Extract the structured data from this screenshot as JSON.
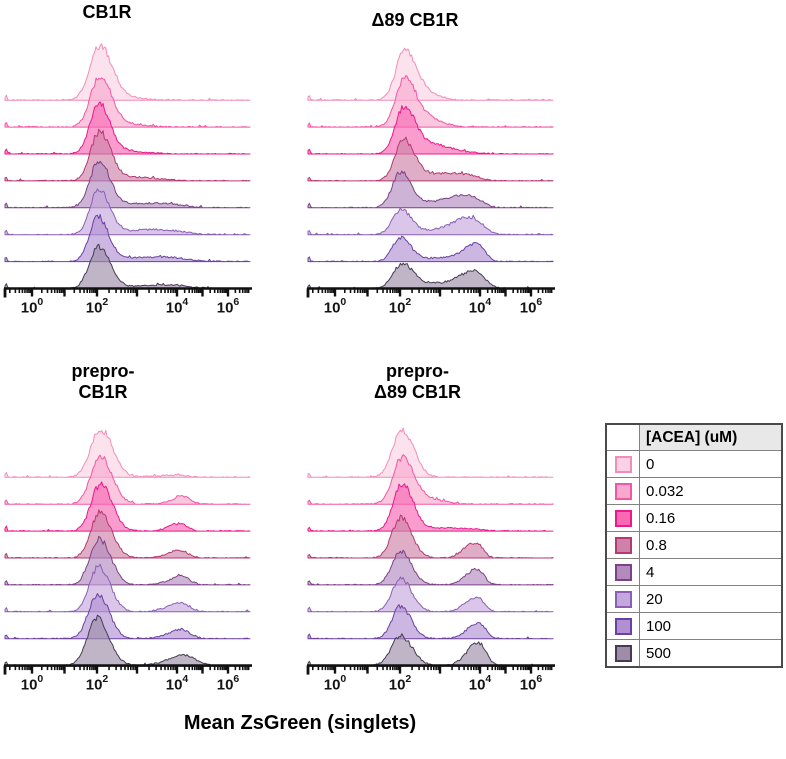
{
  "chart_data": {
    "type": "area",
    "subtype": "ridgeline-flow-cytometry-histograms",
    "x_axis": {
      "label": "Mean ZsGreen (singlets)",
      "scale": "biexponential-log10",
      "tick_base": "10",
      "tick_exponents": [
        0,
        2,
        4,
        6
      ],
      "range_log10": [
        -0.85,
        6.9
      ],
      "grid": false
    },
    "y_axis": {
      "label": "",
      "note": "event density, one offset histogram per ACEA concentration, 0 uM on top to 500 uM on bottom"
    },
    "legend": {
      "title": "[ACEA] (uM)",
      "position": "right"
    },
    "series": [
      {
        "concentration_uM": "0",
        "stroke": "#F48CBB",
        "fill": "#FBD2E3"
      },
      {
        "concentration_uM": "0.032",
        "stroke": "#F455A5",
        "fill": "#F9A9CE"
      },
      {
        "concentration_uM": "0.16",
        "stroke": "#EC188C",
        "fill": "#F868B3"
      },
      {
        "concentration_uM": "0.8",
        "stroke": "#B43A71",
        "fill": "#CE82A7"
      },
      {
        "concentration_uM": "4",
        "stroke": "#7D4186",
        "fill": "#B28ABE"
      },
      {
        "concentration_uM": "20",
        "stroke": "#8C5FB6",
        "fill": "#C5A7DB"
      },
      {
        "concentration_uM": "100",
        "stroke": "#6C40A2",
        "fill": "#B190D2"
      },
      {
        "concentration_uM": "500",
        "stroke": "#473B54",
        "fill": "#9D8DA7"
      }
    ],
    "edge_spike_height": 0.09,
    "panels": [
      {
        "title_lines": [
          "CB1R"
        ],
        "rows": [
          {
            "peaks": [
              {
                "c": 2.08,
                "h": 1.0,
                "w": 0.3
              },
              {
                "c": 2.6,
                "h": 0.06,
                "w": 0.5
              }
            ]
          },
          {
            "peaks": [
              {
                "c": 2.08,
                "h": 0.96,
                "w": 0.28
              },
              {
                "c": 2.7,
                "h": 0.06,
                "w": 0.5
              }
            ]
          },
          {
            "peaks": [
              {
                "c": 2.05,
                "h": 0.94,
                "w": 0.27
              },
              {
                "c": 2.7,
                "h": 0.06,
                "w": 0.5
              }
            ]
          },
          {
            "peaks": [
              {
                "c": 2.07,
                "h": 0.92,
                "w": 0.27
              },
              {
                "c": 2.9,
                "h": 0.07,
                "w": 0.6
              }
            ]
          },
          {
            "peaks": [
              {
                "c": 2.05,
                "h": 0.87,
                "w": 0.27
              },
              {
                "c": 3.3,
                "h": 0.09,
                "w": 0.8
              }
            ]
          },
          {
            "peaks": [
              {
                "c": 2.05,
                "h": 0.86,
                "w": 0.26
              },
              {
                "c": 3.4,
                "h": 0.1,
                "w": 0.8
              }
            ]
          },
          {
            "peaks": [
              {
                "c": 2.03,
                "h": 0.84,
                "w": 0.26
              },
              {
                "c": 3.5,
                "h": 0.09,
                "w": 0.8
              }
            ]
          },
          {
            "peaks": [
              {
                "c": 2.05,
                "h": 0.8,
                "w": 0.28
              },
              {
                "c": 3.7,
                "h": 0.07,
                "w": 0.7
              }
            ]
          }
        ]
      },
      {
        "title_lines": [
          "Δ89 CB1R"
        ],
        "rows": [
          {
            "peaks": [
              {
                "c": 2.12,
                "h": 0.87,
                "w": 0.26
              },
              {
                "c": 2.55,
                "h": 0.18,
                "w": 0.35
              }
            ]
          },
          {
            "peaks": [
              {
                "c": 2.12,
                "h": 0.85,
                "w": 0.26
              },
              {
                "c": 2.6,
                "h": 0.2,
                "w": 0.4
              }
            ]
          },
          {
            "peaks": [
              {
                "c": 2.1,
                "h": 0.81,
                "w": 0.26
              },
              {
                "c": 2.65,
                "h": 0.2,
                "w": 0.45
              },
              {
                "c": 3.4,
                "h": 0.04,
                "w": 0.5
              }
            ]
          },
          {
            "peaks": [
              {
                "c": 2.1,
                "h": 0.75,
                "w": 0.26
              },
              {
                "c": 2.8,
                "h": 0.12,
                "w": 0.5
              },
              {
                "c": 3.6,
                "h": 0.1,
                "w": 0.4
              }
            ]
          },
          {
            "peaks": [
              {
                "c": 2.02,
                "h": 0.66,
                "w": 0.26
              },
              {
                "c": 2.9,
                "h": 0.1,
                "w": 0.6
              },
              {
                "c": 3.65,
                "h": 0.2,
                "w": 0.4
              }
            ]
          },
          {
            "peaks": [
              {
                "c": 2.02,
                "h": 0.47,
                "w": 0.26
              },
              {
                "c": 3.0,
                "h": 0.09,
                "w": 0.5
              },
              {
                "c": 3.75,
                "h": 0.3,
                "w": 0.38
              }
            ]
          },
          {
            "peaks": [
              {
                "c": 2.02,
                "h": 0.45,
                "w": 0.25
              },
              {
                "c": 3.0,
                "h": 0.07,
                "w": 0.5
              },
              {
                "c": 3.88,
                "h": 0.33,
                "w": 0.3
              }
            ]
          },
          {
            "peaks": [
              {
                "c": 2.06,
                "h": 0.45,
                "w": 0.27
              },
              {
                "c": 3.0,
                "h": 0.1,
                "w": 0.6
              },
              {
                "c": 3.85,
                "h": 0.3,
                "w": 0.35
              }
            ]
          }
        ]
      },
      {
        "title_lines": [
          "prepro-",
          "CB1R"
        ],
        "rows": [
          {
            "peaks": [
              {
                "c": 2.1,
                "h": 0.92,
                "w": 0.3
              },
              {
                "c": 3.9,
                "h": 0.04,
                "w": 0.5
              }
            ]
          },
          {
            "peaks": [
              {
                "c": 2.1,
                "h": 0.9,
                "w": 0.29
              },
              {
                "c": 4.2,
                "h": 0.16,
                "w": 0.3
              }
            ]
          },
          {
            "peaks": [
              {
                "c": 2.1,
                "h": 0.9,
                "w": 0.28
              },
              {
                "c": 4.1,
                "h": 0.15,
                "w": 0.3
              }
            ]
          },
          {
            "peaks": [
              {
                "c": 2.09,
                "h": 0.88,
                "w": 0.28
              },
              {
                "c": 4.1,
                "h": 0.15,
                "w": 0.32
              }
            ]
          },
          {
            "peaks": [
              {
                "c": 2.07,
                "h": 0.88,
                "w": 0.28
              },
              {
                "c": 4.15,
                "h": 0.17,
                "w": 0.33
              }
            ]
          },
          {
            "peaks": [
              {
                "c": 2.05,
                "h": 0.87,
                "w": 0.28
              },
              {
                "c": 4.1,
                "h": 0.17,
                "w": 0.35
              }
            ]
          },
          {
            "peaks": [
              {
                "c": 2.02,
                "h": 0.86,
                "w": 0.28
              },
              {
                "c": 4.15,
                "h": 0.18,
                "w": 0.35
              }
            ]
          },
          {
            "peaks": [
              {
                "c": 2.0,
                "h": 0.92,
                "w": 0.3
              },
              {
                "c": 4.25,
                "h": 0.2,
                "w": 0.45
              }
            ]
          }
        ]
      },
      {
        "title_lines": [
          "prepro-",
          "Δ89 CB1R"
        ],
        "rows": [
          {
            "peaks": [
              {
                "c": 2.06,
                "h": 0.9,
                "w": 0.29
              }
            ]
          },
          {
            "peaks": [
              {
                "c": 2.06,
                "h": 0.88,
                "w": 0.28
              },
              {
                "c": 2.7,
                "h": 0.1,
                "w": 0.4
              }
            ]
          },
          {
            "peaks": [
              {
                "c": 2.06,
                "h": 0.88,
                "w": 0.27
              },
              {
                "c": 3.2,
                "h": 0.06,
                "w": 0.7
              }
            ]
          },
          {
            "peaks": [
              {
                "c": 2.02,
                "h": 0.77,
                "w": 0.27
              },
              {
                "c": 3.85,
                "h": 0.29,
                "w": 0.26
              }
            ]
          },
          {
            "peaks": [
              {
                "c": 2.02,
                "h": 0.64,
                "w": 0.27
              },
              {
                "c": 3.9,
                "h": 0.3,
                "w": 0.26
              }
            ]
          },
          {
            "peaks": [
              {
                "c": 2.02,
                "h": 0.64,
                "w": 0.27
              },
              {
                "c": 3.9,
                "h": 0.28,
                "w": 0.27
              }
            ]
          },
          {
            "peaks": [
              {
                "c": 2.02,
                "h": 0.62,
                "w": 0.26
              },
              {
                "c": 3.95,
                "h": 0.3,
                "w": 0.27
              }
            ]
          },
          {
            "peaks": [
              {
                "c": 2.02,
                "h": 0.57,
                "w": 0.29
              },
              {
                "c": 3.95,
                "h": 0.44,
                "w": 0.28
              }
            ]
          }
        ]
      }
    ]
  }
}
